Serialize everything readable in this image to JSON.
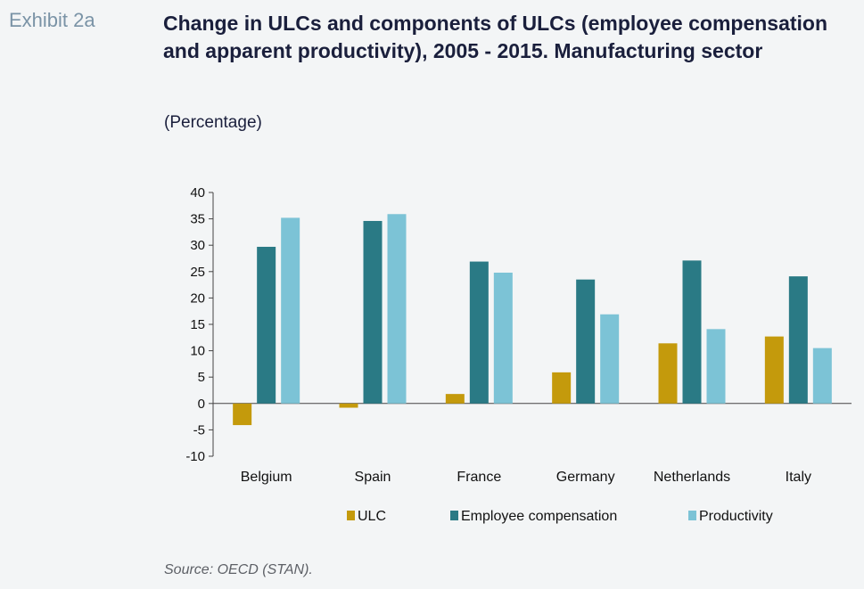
{
  "exhibit": "Exhibit 2a",
  "chart_data": {
    "type": "bar",
    "title": "Change in ULCs and components of ULCs (employee compensation and apparent productivity), 2005 - 2015. Manufacturing sector",
    "subtitle": "(Percentage)",
    "categories": [
      "Belgium",
      "Spain",
      "France",
      "Germany",
      "Netherlands",
      "Italy"
    ],
    "series": [
      {
        "name": "ULC",
        "color": "#c49a0c",
        "values": [
          -4.1,
          -0.8,
          1.8,
          5.9,
          11.4,
          12.7
        ]
      },
      {
        "name": "Employee compensation",
        "color": "#2a7a85",
        "values": [
          29.7,
          34.6,
          26.9,
          23.5,
          27.1,
          24.1
        ]
      },
      {
        "name": "Productivity",
        "color": "#7cc3d6",
        "values": [
          35.2,
          35.9,
          24.8,
          16.9,
          14.1,
          10.5
        ]
      }
    ],
    "ylim": [
      -10,
      40
    ],
    "yticks": [
      40,
      35,
      30,
      25,
      20,
      15,
      10,
      5,
      0,
      -5,
      -10
    ],
    "xlabel": "",
    "ylabel": "",
    "grid": false,
    "legend_position": "bottom"
  },
  "source": "Source: OECD (STAN)."
}
